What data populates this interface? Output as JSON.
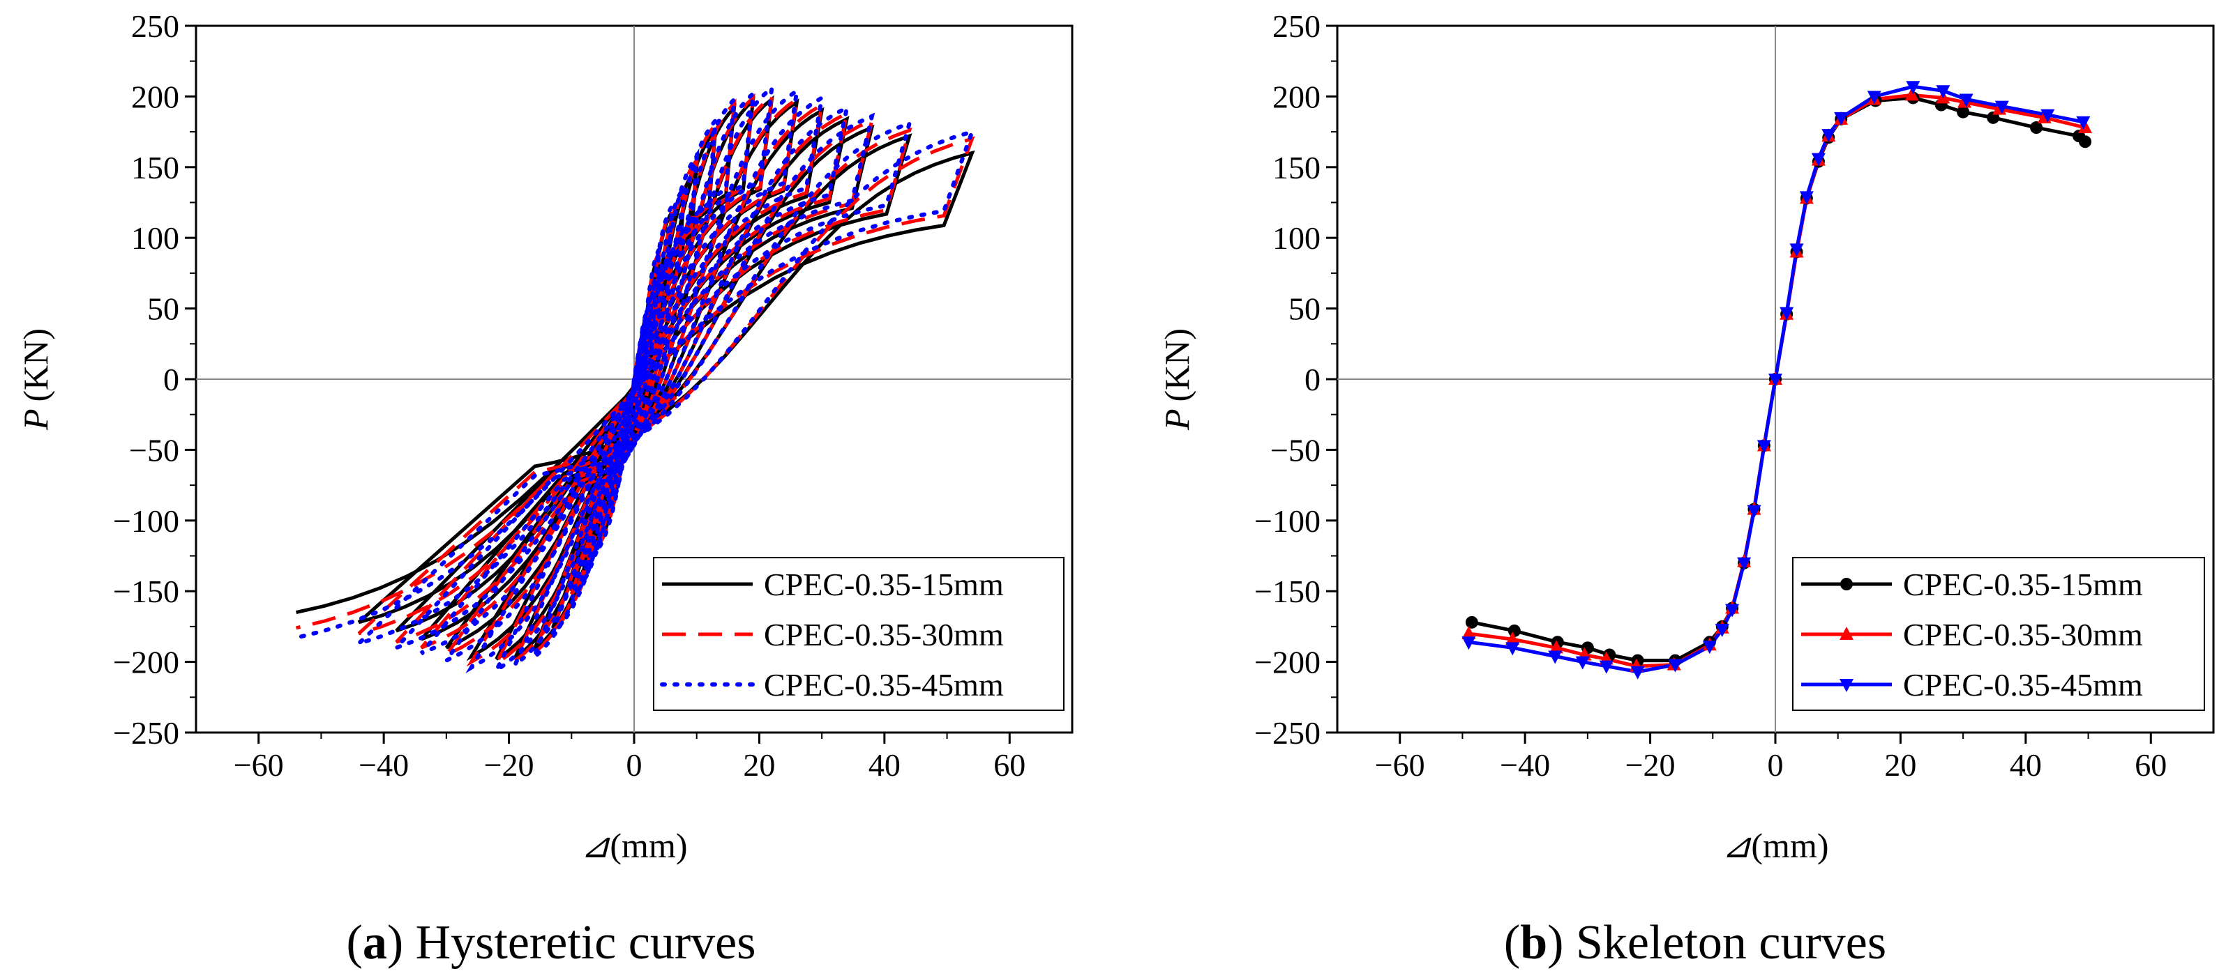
{
  "chart_data": [
    {
      "id": "a",
      "type": "line",
      "caption_label": "a",
      "caption_text": "Hysteretic curves",
      "xlabel_symbol": "⊿",
      "xlabel_unit": "(mm)",
      "ylabel_symbol": "P",
      "ylabel_unit": "(KN)",
      "xlim": [
        -70,
        70
      ],
      "ylim": [
        -250,
        250
      ],
      "xticks": [
        -60,
        -40,
        -20,
        0,
        20,
        40,
        60
      ],
      "xtick_labels": [
        "−60",
        "−40",
        "−20",
        "0",
        "20",
        "40",
        "60"
      ],
      "yticks": [
        -250,
        -200,
        -150,
        -100,
        -50,
        0,
        50,
        100,
        150,
        200,
        250
      ],
      "ytick_labels": [
        "−250",
        "−200",
        "−150",
        "−100",
        "−50",
        "0",
        "50",
        "100",
        "150",
        "200",
        "250"
      ],
      "zero_lines": true,
      "legend_position": "bottom-right",
      "series": [
        {
          "name": "CPEC-0.35-15mm",
          "color": "#000000",
          "style": "solid",
          "amplitudes": [
            [
              2,
              45
            ],
            [
              4,
              88
            ],
            [
              6,
              118
            ],
            [
              8,
              132
            ],
            [
              10,
              150
            ],
            [
              13,
              176
            ],
            [
              16,
              192
            ],
            [
              19,
              197
            ],
            [
              22,
              198
            ],
            [
              26,
              196
            ],
            [
              30,
              190
            ],
            [
              34,
              184
            ],
            [
              38,
              178
            ],
            [
              44,
              172
            ],
            [
              54,
              160
            ]
          ],
          "neg_amplitudes": [
            [
              2,
              45
            ],
            [
              4,
              88
            ],
            [
              6,
              118
            ],
            [
              8,
              130
            ],
            [
              10,
              150
            ],
            [
              13,
              176
            ],
            [
              16,
              192
            ],
            [
              19,
              197
            ],
            [
              22,
              198
            ],
            [
              26,
              196
            ],
            [
              30,
              190
            ],
            [
              34,
              184
            ],
            [
              38,
              178
            ],
            [
              44,
              172
            ],
            [
              54,
              165
            ]
          ]
        },
        {
          "name": "CPEC-0.35-30mm",
          "color": "#ff0000",
          "style": "dashed",
          "amplitudes": [
            [
              2,
              46
            ],
            [
              4,
              90
            ],
            [
              6,
              120
            ],
            [
              8,
              134
            ],
            [
              10,
              155
            ],
            [
              13,
              180
            ],
            [
              16,
              195
            ],
            [
              19,
              199
            ],
            [
              22,
              200
            ],
            [
              26,
              198
            ],
            [
              30,
              194
            ],
            [
              34,
              188
            ],
            [
              38,
              183
            ],
            [
              44,
              176
            ],
            [
              54,
              170
            ]
          ],
          "neg_amplitudes": [
            [
              2,
              46
            ],
            [
              4,
              90
            ],
            [
              6,
              120
            ],
            [
              8,
              132
            ],
            [
              10,
              152
            ],
            [
              13,
              178
            ],
            [
              16,
              194
            ],
            [
              19,
              199
            ],
            [
              22,
              201
            ],
            [
              26,
              200
            ],
            [
              30,
              195
            ],
            [
              34,
              190
            ],
            [
              38,
              186
            ],
            [
              44,
              180
            ],
            [
              54,
              176
            ]
          ]
        },
        {
          "name": "CPEC-0.35-45mm",
          "color": "#0000ff",
          "style": "dotted",
          "amplitudes": [
            [
              2,
              47
            ],
            [
              4,
              92
            ],
            [
              6,
              122
            ],
            [
              8,
              136
            ],
            [
              10,
              158
            ],
            [
              13,
              183
            ],
            [
              16,
              198
            ],
            [
              19,
              202
            ],
            [
              22,
              206
            ],
            [
              26,
              204
            ],
            [
              30,
              199
            ],
            [
              34,
              192
            ],
            [
              38,
              186
            ],
            [
              44,
              181
            ],
            [
              54,
              175
            ]
          ],
          "neg_amplitudes": [
            [
              2,
              47
            ],
            [
              4,
              92
            ],
            [
              6,
              122
            ],
            [
              8,
              134
            ],
            [
              10,
              155
            ],
            [
              13,
              180
            ],
            [
              16,
              197
            ],
            [
              19,
              202
            ],
            [
              22,
              206
            ],
            [
              26,
              204
            ],
            [
              30,
              199
            ],
            [
              34,
              194
            ],
            [
              38,
              190
            ],
            [
              44,
              187
            ],
            [
              54,
              183
            ]
          ]
        }
      ]
    },
    {
      "id": "b",
      "type": "line",
      "caption_label": "b",
      "caption_text": "Skeleton curves",
      "xlabel_symbol": "⊿",
      "xlabel_unit": "(mm)",
      "ylabel_symbol": "P",
      "ylabel_unit": "(KN)",
      "xlim": [
        -70,
        70
      ],
      "ylim": [
        -250,
        250
      ],
      "xticks": [
        -60,
        -40,
        -20,
        0,
        20,
        40,
        60
      ],
      "xtick_labels": [
        "−60",
        "−40",
        "−20",
        "0",
        "20",
        "40",
        "60"
      ],
      "yticks": [
        -250,
        -200,
        -150,
        -100,
        -50,
        0,
        50,
        100,
        150,
        200,
        250
      ],
      "ytick_labels": [
        "−250",
        "−200",
        "−150",
        "−100",
        "−50",
        "0",
        "50",
        "100",
        "150",
        "200",
        "250"
      ],
      "zero_lines": true,
      "legend_position": "bottom-right",
      "series": [
        {
          "name": "CPEC-0.35-15mm",
          "color": "#000000",
          "marker": "circle",
          "x": [
            -48.5,
            -41.7,
            -34.8,
            -30.0,
            -26.5,
            -22.0,
            -16.0,
            -10.5,
            -8.5,
            -6.9,
            -5.0,
            -3.4,
            -1.8,
            0,
            1.8,
            3.4,
            5.0,
            6.9,
            8.5,
            10.5,
            16.0,
            22.0,
            26.5,
            30.0,
            34.8,
            41.7,
            48.5,
            49.5
          ],
          "y": [
            -172,
            -178,
            -186,
            -190,
            -195,
            -199,
            -199,
            -186,
            -175,
            -162,
            -130,
            -92,
            -47,
            0,
            46,
            90,
            128,
            154,
            171,
            184,
            197,
            199,
            194,
            189,
            185,
            178,
            172,
            168
          ]
        },
        {
          "name": "CPEC-0.35-30mm",
          "color": "#ff0000",
          "marker": "triangle-up",
          "x": [
            -49.0,
            -42.0,
            -35.0,
            -30.5,
            -27.0,
            -22.2,
            -16.2,
            -10.5,
            -8.5,
            -6.9,
            -5.0,
            -3.4,
            -1.8,
            0,
            1.8,
            3.4,
            5.0,
            6.9,
            8.5,
            10.5,
            15.8,
            21.8,
            26.8,
            30.2,
            35.8,
            43.0,
            49.5
          ],
          "y": [
            -180,
            -184,
            -190,
            -195,
            -198,
            -203,
            -202,
            -188,
            -176,
            -162,
            -129,
            -92,
            -47,
            0,
            46,
            90,
            128,
            155,
            172,
            184,
            198,
            201,
            199,
            196,
            191,
            185,
            178
          ]
        },
        {
          "name": "CPEC-0.35-45mm",
          "color": "#0000ff",
          "marker": "triangle-down",
          "x": [
            -49.0,
            -42.0,
            -35.2,
            -30.8,
            -27.0,
            -22.0,
            -16.0,
            -10.5,
            -8.5,
            -6.9,
            -5.0,
            -3.4,
            -1.8,
            0,
            1.8,
            3.4,
            5.0,
            6.9,
            8.5,
            10.5,
            15.8,
            22.0,
            26.8,
            30.5,
            36.2,
            43.5,
            49.2
          ],
          "y": [
            -186,
            -190,
            -196,
            -200,
            -203,
            -207,
            -202,
            -189,
            -177,
            -163,
            -130,
            -93,
            -47,
            0,
            47,
            92,
            129,
            156,
            173,
            185,
            200,
            207,
            204,
            198,
            193,
            187,
            182
          ]
        }
      ]
    }
  ]
}
